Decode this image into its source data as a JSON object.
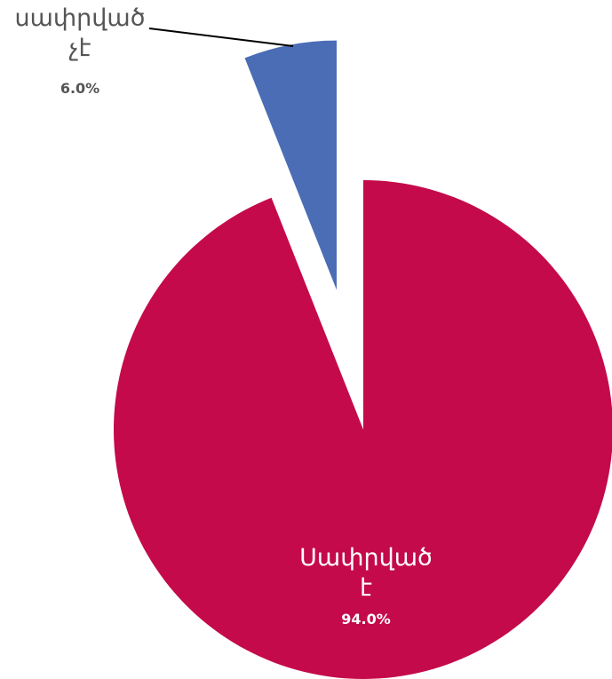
{
  "chart_data": {
    "type": "pie",
    "categories": [
      "Սափրված է",
      "սափրված չէ"
    ],
    "values": [
      94,
      6
    ],
    "value_labels": [
      "94.0%",
      "6.0%"
    ],
    "colors": [
      "#c40a4a",
      "#4a6db5"
    ],
    "explode": [
      0,
      0.57
    ]
  }
}
